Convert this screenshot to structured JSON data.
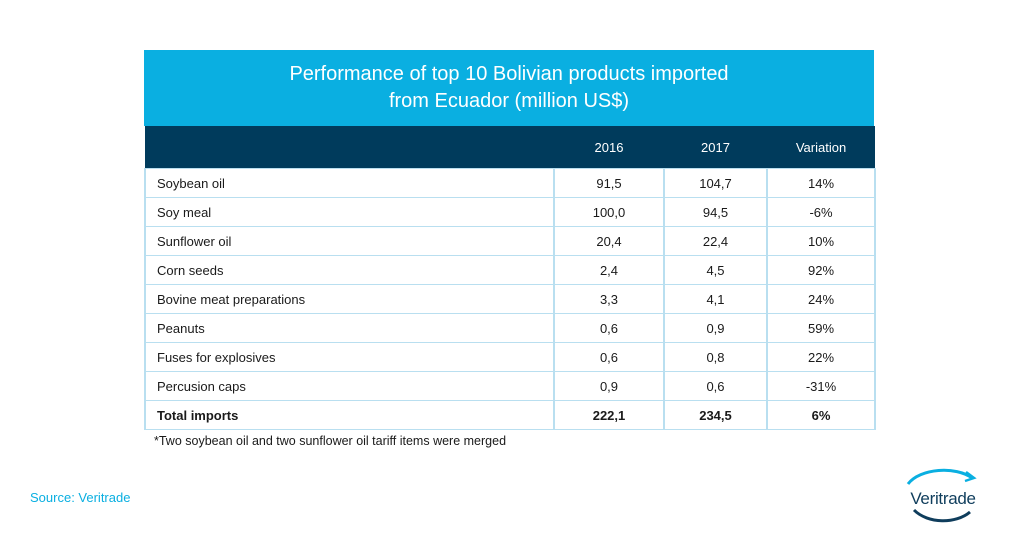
{
  "chart_data": {
    "type": "table",
    "title_lines": [
      "Performance of top 10 Bolivian products imported",
      "from Ecuador (million US$)"
    ],
    "columns": [
      "",
      "2016",
      "2017",
      "Variation"
    ],
    "rows": [
      {
        "product": "Soybean oil",
        "v2016": "91,5",
        "v2017": "104,7",
        "variation": "14%"
      },
      {
        "product": "Soy meal",
        "v2016": "100,0",
        "v2017": "94,5",
        "variation": "-6%"
      },
      {
        "product": "Sunflower oil",
        "v2016": "20,4",
        "v2017": "22,4",
        "variation": "10%"
      },
      {
        "product": "Corn seeds",
        "v2016": "2,4",
        "v2017": "4,5",
        "variation": "92%"
      },
      {
        "product": "Bovine meat preparations",
        "v2016": "3,3",
        "v2017": "4,1",
        "variation": "24%"
      },
      {
        "product": "Peanuts",
        "v2016": "0,6",
        "v2017": "0,9",
        "variation": "59%"
      },
      {
        "product": "Fuses for explosives",
        "v2016": "0,6",
        "v2017": "0,8",
        "variation": "22%"
      },
      {
        "product": "Percusion caps",
        "v2016": "0,9",
        "v2017": "0,6",
        "variation": "-31%"
      }
    ],
    "total": {
      "product": "Total imports",
      "v2016": "222,1",
      "v2017": "234,5",
      "variation": "6%"
    }
  },
  "footnote": "*Two soybean oil and two sunflower oil tariff items were merged",
  "source": "Source: Veritrade",
  "logo": {
    "text": "Veritrade",
    "icon": "veritrade-arc-logo-icon"
  },
  "colors": {
    "title_band": "#0aafe1",
    "header_band": "#003b5c",
    "grid": "#b9dff0",
    "source_text": "#0aafe1"
  }
}
